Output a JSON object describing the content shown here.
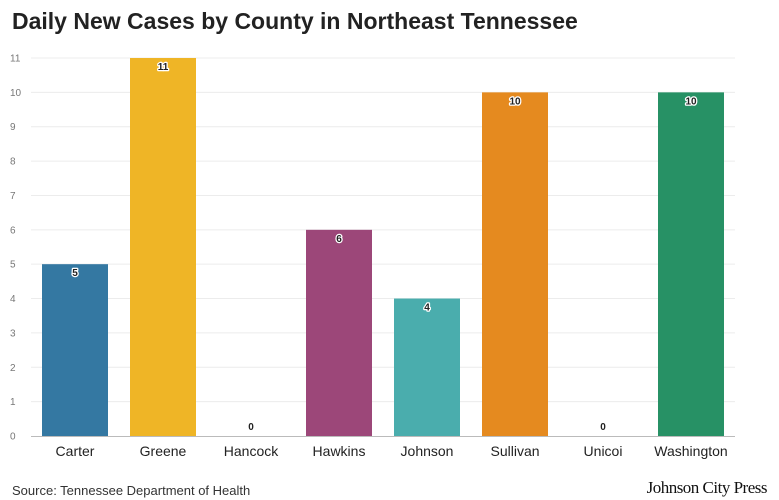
{
  "title": "Daily New Cases by County in Northeast Tennessee",
  "source": "Source: Tennessee Department of Health",
  "brand": "Johnson City Press",
  "chart_data": {
    "type": "bar",
    "categories": [
      "Carter",
      "Greene",
      "Hancock",
      "Hawkins",
      "Johnson",
      "Sullivan",
      "Unicoi",
      "Washington"
    ],
    "values": [
      5,
      11,
      0,
      6,
      4,
      10,
      0,
      10
    ],
    "colors": [
      "#3478a2",
      "#efb526",
      "#cccccc",
      "#9c4779",
      "#4aadad",
      "#e58a1f",
      "#cccccc",
      "#279165"
    ],
    "data_labels": [
      "5",
      "11",
      "0",
      "6",
      "4",
      "10",
      "0",
      "10"
    ],
    "y_ticks": [
      0,
      1,
      2,
      3,
      4,
      5,
      6,
      7,
      8,
      9,
      10,
      11
    ],
    "ylim": [
      0,
      11
    ],
    "grid": true,
    "title": "Daily New Cases by County in Northeast Tennessee",
    "xlabel": "",
    "ylabel": ""
  }
}
